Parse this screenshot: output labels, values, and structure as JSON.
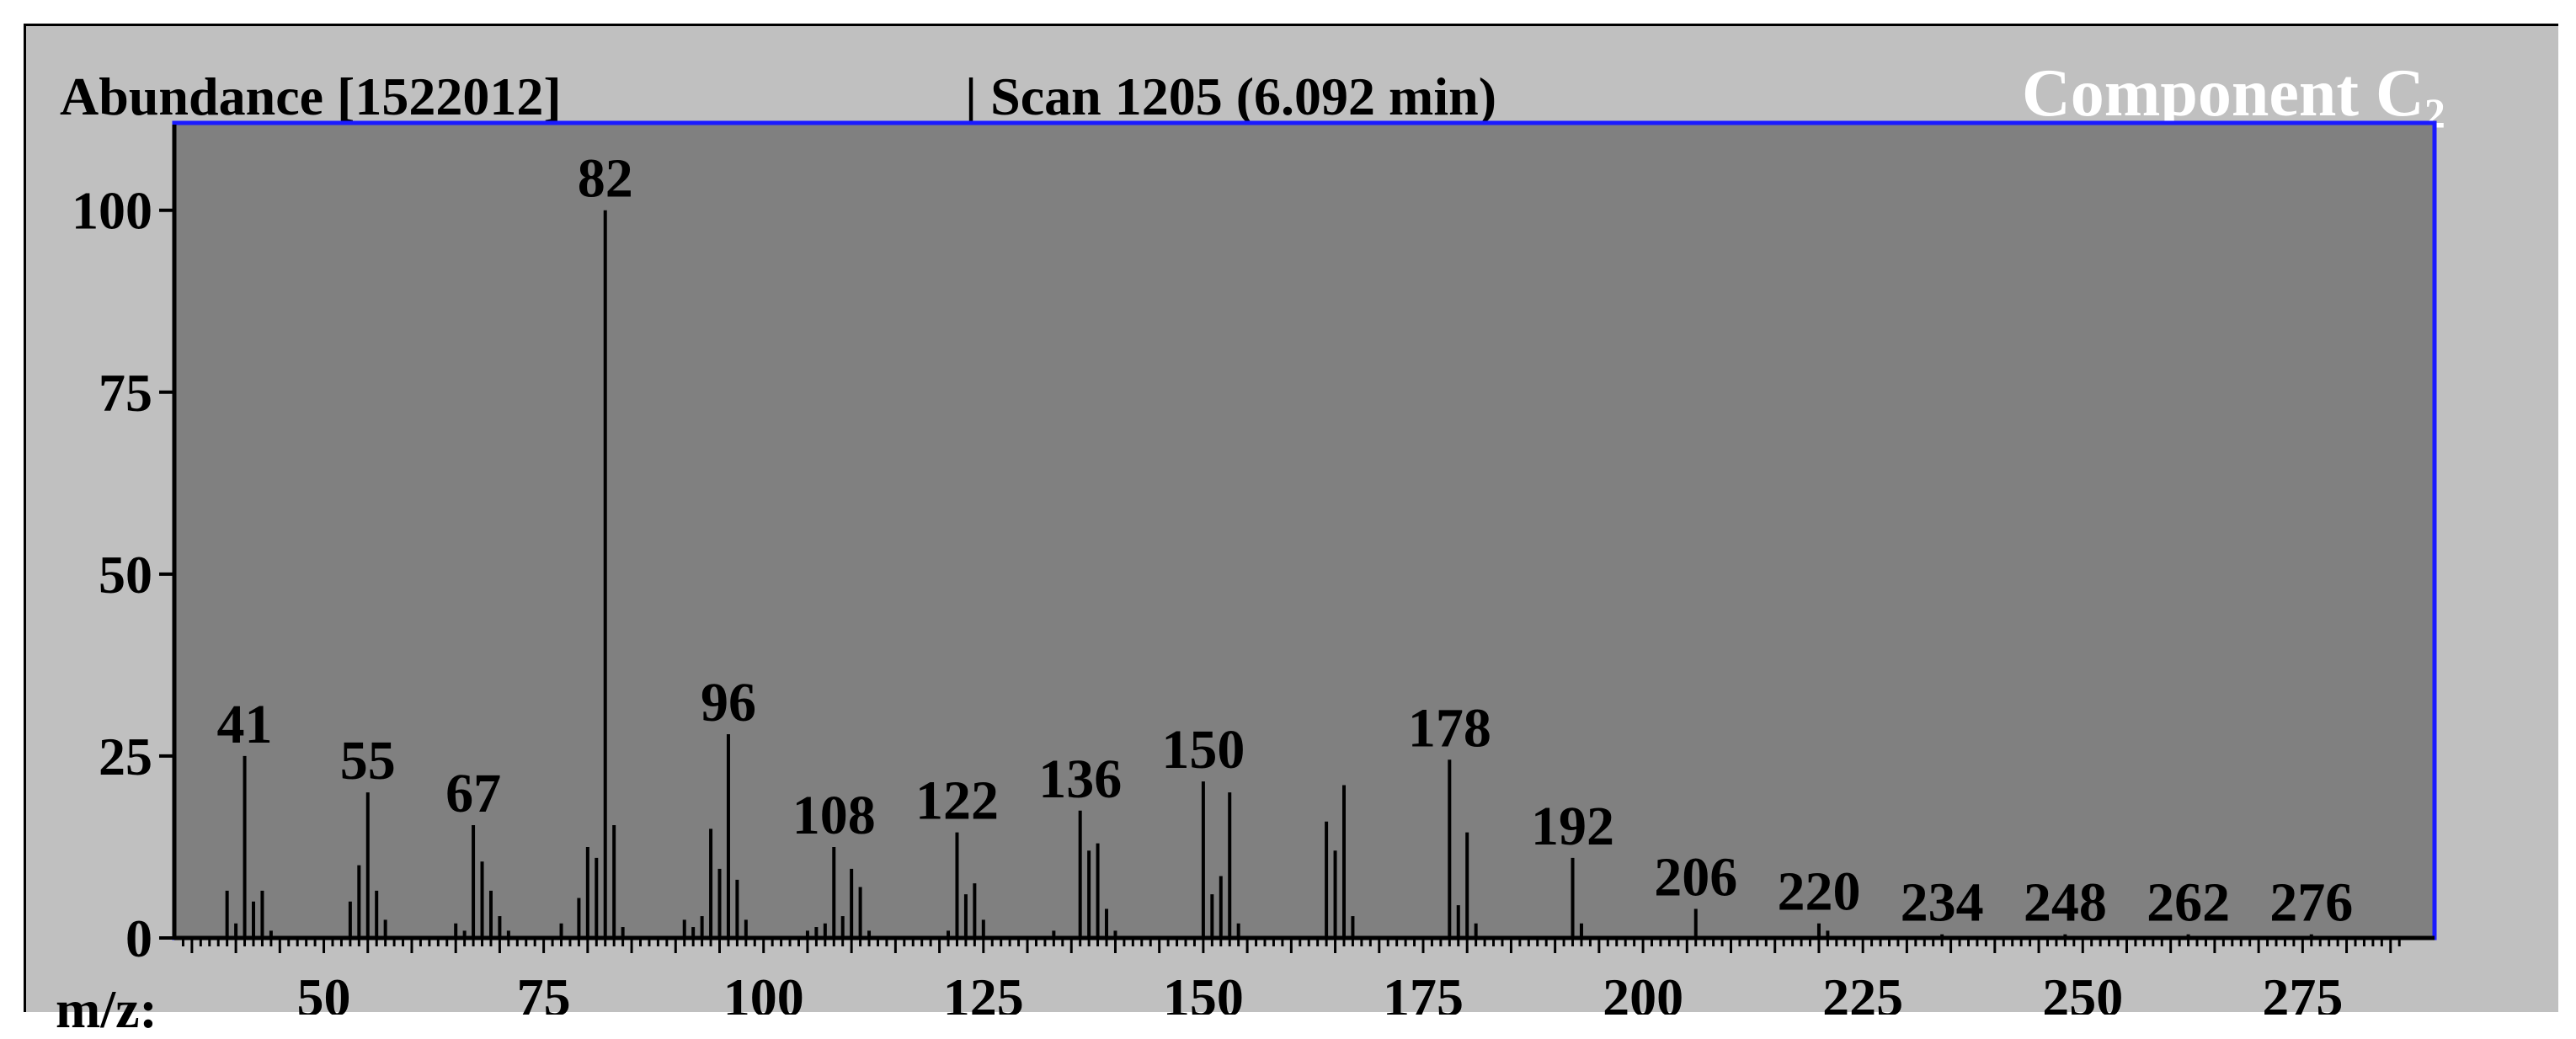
{
  "header": {
    "abundance": "Abundance [1522012]",
    "scan": "| Scan 1205 (6.092 min)",
    "component_text": "Component C",
    "component_sub": "2"
  },
  "x_axis_label": "m/z:",
  "colors": {
    "outer": "#c0c0c0",
    "plot": "#808080",
    "plot_border": "#1a1aff",
    "bar": "#000000",
    "component_text": "#ffffff"
  },
  "chart_data": {
    "type": "bar",
    "xlim": [
      33,
      290
    ],
    "ylim": [
      0,
      112
    ],
    "xticks": [
      50,
      75,
      100,
      125,
      150,
      175,
      200,
      225,
      250,
      275
    ],
    "yticks": [
      0,
      25,
      50,
      75,
      100
    ],
    "peaks": [
      {
        "mz": 39,
        "rel": 6.5
      },
      {
        "mz": 40,
        "rel": 2
      },
      {
        "mz": 41,
        "rel": 25
      },
      {
        "mz": 42,
        "rel": 5
      },
      {
        "mz": 43,
        "rel": 6.5
      },
      {
        "mz": 44,
        "rel": 1
      },
      {
        "mz": 53,
        "rel": 5
      },
      {
        "mz": 54,
        "rel": 10
      },
      {
        "mz": 55,
        "rel": 20
      },
      {
        "mz": 56,
        "rel": 6.5
      },
      {
        "mz": 57,
        "rel": 2.5
      },
      {
        "mz": 65,
        "rel": 2
      },
      {
        "mz": 66,
        "rel": 1
      },
      {
        "mz": 67,
        "rel": 15.5
      },
      {
        "mz": 68,
        "rel": 10.5
      },
      {
        "mz": 69,
        "rel": 6.5
      },
      {
        "mz": 70,
        "rel": 3
      },
      {
        "mz": 71,
        "rel": 1
      },
      {
        "mz": 77,
        "rel": 2
      },
      {
        "mz": 79,
        "rel": 5.5
      },
      {
        "mz": 80,
        "rel": 12.5
      },
      {
        "mz": 81,
        "rel": 11
      },
      {
        "mz": 82,
        "rel": 100
      },
      {
        "mz": 83,
        "rel": 15.5
      },
      {
        "mz": 84,
        "rel": 1.5
      },
      {
        "mz": 91,
        "rel": 2.5
      },
      {
        "mz": 92,
        "rel": 1.5
      },
      {
        "mz": 93,
        "rel": 3
      },
      {
        "mz": 94,
        "rel": 15
      },
      {
        "mz": 95,
        "rel": 9.5
      },
      {
        "mz": 96,
        "rel": 28
      },
      {
        "mz": 97,
        "rel": 8
      },
      {
        "mz": 98,
        "rel": 2.5
      },
      {
        "mz": 105,
        "rel": 1
      },
      {
        "mz": 106,
        "rel": 1.5
      },
      {
        "mz": 107,
        "rel": 2
      },
      {
        "mz": 108,
        "rel": 12.5
      },
      {
        "mz": 109,
        "rel": 3
      },
      {
        "mz": 110,
        "rel": 9.5
      },
      {
        "mz": 111,
        "rel": 7
      },
      {
        "mz": 112,
        "rel": 1
      },
      {
        "mz": 121,
        "rel": 1
      },
      {
        "mz": 122,
        "rel": 14.5
      },
      {
        "mz": 123,
        "rel": 6
      },
      {
        "mz": 124,
        "rel": 7.5
      },
      {
        "mz": 125,
        "rel": 2.5
      },
      {
        "mz": 133,
        "rel": 1
      },
      {
        "mz": 136,
        "rel": 17.5
      },
      {
        "mz": 137,
        "rel": 12
      },
      {
        "mz": 138,
        "rel": 13
      },
      {
        "mz": 139,
        "rel": 4
      },
      {
        "mz": 140,
        "rel": 1
      },
      {
        "mz": 150,
        "rel": 21.5
      },
      {
        "mz": 151,
        "rel": 6
      },
      {
        "mz": 152,
        "rel": 8.5
      },
      {
        "mz": 153,
        "rel": 20
      },
      {
        "mz": 154,
        "rel": 2
      },
      {
        "mz": 164,
        "rel": 16
      },
      {
        "mz": 165,
        "rel": 12
      },
      {
        "mz": 166,
        "rel": 21
      },
      {
        "mz": 167,
        "rel": 3
      },
      {
        "mz": 178,
        "rel": 24.5
      },
      {
        "mz": 179,
        "rel": 4.5
      },
      {
        "mz": 180,
        "rel": 14.5
      },
      {
        "mz": 181,
        "rel": 2
      },
      {
        "mz": 192,
        "rel": 11
      },
      {
        "mz": 193,
        "rel": 2
      },
      {
        "mz": 206,
        "rel": 4
      },
      {
        "mz": 220,
        "rel": 2
      },
      {
        "mz": 221,
        "rel": 1
      },
      {
        "mz": 234,
        "rel": 0.5
      },
      {
        "mz": 248,
        "rel": 0.5
      },
      {
        "mz": 262,
        "rel": 0.5
      },
      {
        "mz": 276,
        "rel": 0.5
      }
    ],
    "peak_labels": [
      {
        "mz": 41,
        "text": "41",
        "at": 25
      },
      {
        "mz": 55,
        "text": "55",
        "at": 20
      },
      {
        "mz": 67,
        "text": "67",
        "at": 15.5
      },
      {
        "mz": 82,
        "text": "82",
        "at": 100
      },
      {
        "mz": 96,
        "text": "96",
        "at": 28
      },
      {
        "mz": 108,
        "text": "108",
        "at": 12.5
      },
      {
        "mz": 122,
        "text": "122",
        "at": 14.5
      },
      {
        "mz": 136,
        "text": "136",
        "at": 17.5
      },
      {
        "mz": 150,
        "text": "150",
        "at": 21.5
      },
      {
        "mz": 178,
        "text": "178",
        "at": 24.5
      },
      {
        "mz": 192,
        "text": "192",
        "at": 11
      },
      {
        "mz": 206,
        "text": "206",
        "at": 4
      },
      {
        "mz": 220,
        "text": "220",
        "at": 2
      },
      {
        "mz": 234,
        "text": "234",
        "at": 0.5
      },
      {
        "mz": 248,
        "text": "248",
        "at": 0.5
      },
      {
        "mz": 262,
        "text": "262",
        "at": 0.5
      },
      {
        "mz": 276,
        "text": "276",
        "at": 0.5
      }
    ]
  }
}
